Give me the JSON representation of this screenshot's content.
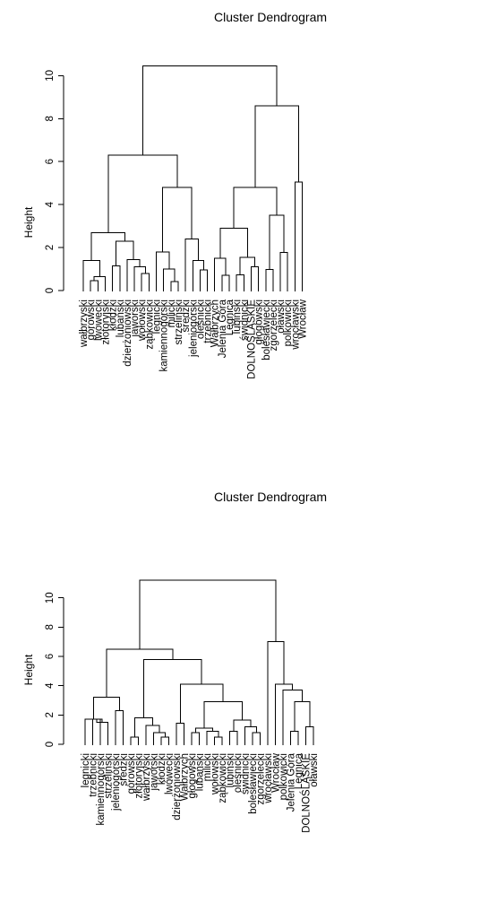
{
  "chart_data": [
    {
      "type": "dendrogram",
      "title": "Cluster Dendrogram",
      "ylabel": "Height",
      "ylim": [
        0,
        10.6
      ],
      "yticks": [
        0,
        2,
        4,
        6,
        8,
        10
      ],
      "leaves": [
        "wałbrzyski",
        "górowski",
        "lwówecki",
        "złotoryjski",
        "kłodzki",
        "lubański",
        "dzierżoniowski",
        "jaworski",
        "wołowski",
        "ząbkowicki",
        "legnicki",
        "kamiennogórski",
        "milicki",
        "strzeliński",
        "średzki",
        "jeleniogórski",
        "oleśnicki",
        "trzebnicki",
        "Wałbrzych",
        "Jelenia Góra",
        "Legnica",
        "lubiński",
        "świdnicki",
        "DOLNOŚLĄSKIE",
        "głogowski",
        "bolesławiecki",
        "zgorzelecki",
        "oławski",
        "polkowicki",
        "wrocławski",
        "Wrocław"
      ],
      "merges": [
        {
          "l": 1,
          "r": 2,
          "h": 0.45
        },
        {
          "l": 12,
          "r": 13,
          "h": 0.42
        },
        {
          "l": 21,
          "r": 22,
          "h": 0.72
        },
        {
          "l": 19,
          "r": 20,
          "h": 0.7
        },
        {
          "l": 16,
          "r": 17,
          "h": 0.95
        },
        {
          "l": 25,
          "r": 26,
          "h": 0.98
        },
        {
          "l": 8,
          "r": 9,
          "h": 0.8
        },
        {
          "l": 23,
          "r": 24,
          "h": 1.1
        },
        {
          "l": 7,
          "r": "m7",
          "h": 1.1
        },
        {
          "l": 11,
          "r": "m2",
          "h": 1.0
        },
        {
          "l": 4,
          "r": 5,
          "h": 1.15
        },
        {
          "l": "m1",
          "r": 3,
          "h": 0.65
        },
        {
          "l": 0,
          "r": "m12",
          "h": 1.4
        },
        {
          "l": 6,
          "r": "m9",
          "h": 1.45
        },
        {
          "l": 15,
          "r": "m5",
          "h": 1.4
        },
        {
          "l": 18,
          "r": "m4",
          "h": 1.5
        },
        {
          "l": "m3",
          "r": "m8",
          "h": 1.55
        },
        {
          "l": 27,
          "r": 28,
          "h": 1.78
        },
        {
          "l": 10,
          "r": "m10",
          "h": 1.8
        },
        {
          "l": "m11",
          "r": "m14",
          "h": 2.3
        },
        {
          "l": 14,
          "r": "m15",
          "h": 2.4
        },
        {
          "l": "m13",
          "r": "m20",
          "h": 2.7
        },
        {
          "l": "m16",
          "r": "m17",
          "h": 2.9
        },
        {
          "l": "m6",
          "r": "m18",
          "h": 3.5
        },
        {
          "l": "m19",
          "r": "m21",
          "h": 4.8
        },
        {
          "l": "m23",
          "r": "m24",
          "h": 4.8
        },
        {
          "l": 29,
          "r": 30,
          "h": 5.05
        },
        {
          "l": "m22",
          "r": "m25",
          "h": 6.3
        },
        {
          "l": "m26",
          "r": "m27",
          "h": 8.6
        },
        {
          "l": "m28",
          "r": "m29",
          "h": 10.45
        }
      ]
    },
    {
      "type": "dendrogram",
      "title": "Cluster Dendrogram",
      "ylabel": "Height",
      "ylim": [
        0,
        10.9
      ],
      "yticks": [
        0,
        2,
        4,
        6,
        8,
        10
      ],
      "leaves": [
        "legnicki",
        "trzebnicki",
        "kamiennogórski",
        "strzeliński",
        "jeleniogórski",
        "średzki",
        "górowski",
        "złotoryjski",
        "wałbrzyski",
        "jaworski",
        "kłodzki",
        "lwówecki",
        "dzierżoniowski",
        "Wałbrzych",
        "głogowski",
        "lubański",
        "milicki",
        "wołowski",
        "ząbkowicki",
        "lubiński",
        "oleśnicki",
        "świdnicki",
        "bolesławiecki",
        "zgorzelecki",
        "wrocławski",
        "Wrocław",
        "polkowicki",
        "Jelenia Góra",
        "Legnica",
        "DOLNOŚLĄSKIE",
        "oławski"
      ],
      "merges": [
        {
          "l": 1,
          "r": 2,
          "h": 1.7
        },
        {
          "l": "m1",
          "r": 3,
          "h": 1.5
        },
        {
          "l": 17,
          "r": 18,
          "h": 0.5
        },
        {
          "l": 10,
          "r": 11,
          "h": 0.5
        },
        {
          "l": 22,
          "r": 23,
          "h": 0.8
        },
        {
          "l": 6,
          "r": 7,
          "h": 0.5
        },
        {
          "l": 14,
          "r": 15,
          "h": 0.8
        },
        {
          "l": 16,
          "r": "m3",
          "h": 0.9
        },
        {
          "l": 29,
          "r": 30,
          "h": 1.2
        },
        {
          "l": 27,
          "r": 28,
          "h": 0.9
        },
        {
          "l": 9,
          "r": "m4",
          "h": 0.8
        },
        {
          "l": 21,
          "r": "m5",
          "h": 1.2
        },
        {
          "l": "m7",
          "r": "m8",
          "h": 1.1
        },
        {
          "l": 8,
          "r": "m11",
          "h": 1.3
        },
        {
          "l": 12,
          "r": 13,
          "h": 1.45
        },
        {
          "l": 19,
          "r": 20,
          "h": 0.9
        },
        {
          "l": 0,
          "r": "m2",
          "h": 1.7
        },
        {
          "l": "m6",
          "r": "m14",
          "h": 1.8
        },
        {
          "l": "m16",
          "r": "m12",
          "h": 1.65
        },
        {
          "l": 4,
          "r": 5,
          "h": 2.3
        },
        {
          "l": "m13",
          "r": "m19",
          "h": 2.9
        },
        {
          "l": "m10",
          "r": "m9",
          "h": 2.9
        },
        {
          "l": "m17",
          "r": "m20",
          "h": 3.2
        },
        {
          "l": 26,
          "r": "m22",
          "h": 3.7
        },
        {
          "l": "m15",
          "r": "m21",
          "h": 4.1
        },
        {
          "l": 25,
          "r": "m24",
          "h": 4.1
        },
        {
          "l": "m18",
          "r": "m25",
          "h": 5.8
        },
        {
          "l": "m23",
          "r": "m27",
          "h": 6.5
        },
        {
          "l": 24,
          "r": "m26",
          "h": 7.0
        },
        {
          "l": "m28",
          "r": "m29",
          "h": 11.2
        }
      ]
    }
  ]
}
